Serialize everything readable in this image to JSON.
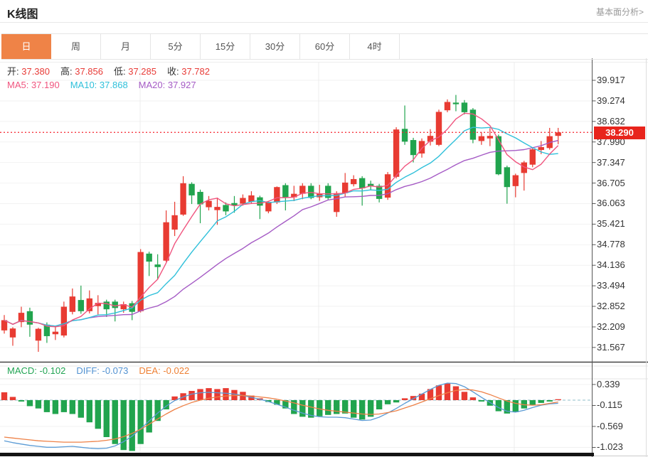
{
  "header": {
    "title": "K线图",
    "link": "基本面分析>"
  },
  "tabs": {
    "items": [
      "日",
      "周",
      "月",
      "5分",
      "15分",
      "30分",
      "60分",
      "4时"
    ],
    "selected_index": 0,
    "selected_color": "#ef8347"
  },
  "info": {
    "ohlc_value_color": "#e83c38",
    "ohlc": [
      {
        "label": "开:",
        "value": "37.380"
      },
      {
        "label": "高:",
        "value": "37.856"
      },
      {
        "label": "低:",
        "value": "37.285"
      },
      {
        "label": "收:",
        "value": "37.782"
      }
    ],
    "ma": [
      {
        "label": "MA5:",
        "value": "37.190",
        "color": "#f0557f"
      },
      {
        "label": "MA10:",
        "value": "37.868",
        "color": "#2fc0da"
      },
      {
        "label": "MA20:",
        "value": "37.927",
        "color": "#a55bc5"
      }
    ]
  },
  "price_tag": {
    "value": "38.290",
    "color": "#e8241c"
  },
  "y_axis": {
    "ticks": [
      "39.917",
      "39.274",
      "38.632",
      "37.990",
      "37.347",
      "36.705",
      "36.063",
      "35.421",
      "34.778",
      "34.136",
      "33.494",
      "32.852",
      "32.209",
      "31.567"
    ]
  },
  "macd_panel": {
    "legend": [
      {
        "label": "MACD:",
        "value": "-0.102",
        "color": "#21a453"
      },
      {
        "label": "DIFF:",
        "value": "-0.073",
        "color": "#5191d1"
      },
      {
        "label": "DEA:",
        "value": "-0.022",
        "color": "#ee8034"
      }
    ],
    "ticks": [
      "0.339",
      "-0.115",
      "-0.569",
      "-1.023"
    ]
  },
  "chart_data": {
    "type": "candlestick",
    "title": "K线图 daily candlestick with MA5/MA10/MA20 and MACD",
    "up_color": "#e83b32",
    "down_color": "#21a44e",
    "ma_colors": {
      "ma5": "#f0557f",
      "ma10": "#2fc0da",
      "ma20": "#a55bc5"
    },
    "macd_colors": {
      "diff": "#5b9bd5",
      "dea": "#ee8147"
    },
    "last_price": 38.29,
    "last_price_line_color": "#f5222d",
    "y_top_value": 39.917,
    "y_bottom_value": 31.567,
    "macd_range": [
      0.339,
      -1.023
    ],
    "candles": [
      [
        32.1,
        32.58,
        32.0,
        32.42
      ],
      [
        31.88,
        32.2,
        31.62,
        32.16
      ],
      [
        32.36,
        32.84,
        32.2,
        32.65
      ],
      [
        32.7,
        32.81,
        31.9,
        32.28
      ],
      [
        31.78,
        32.18,
        31.43,
        32.15
      ],
      [
        32.28,
        32.35,
        31.71,
        31.92
      ],
      [
        31.98,
        32.25,
        31.8,
        32.06
      ],
      [
        31.94,
        33.0,
        31.88,
        32.84
      ],
      [
        32.68,
        33.41,
        32.6,
        33.16
      ],
      [
        33.05,
        33.5,
        32.62,
        32.7
      ],
      [
        32.7,
        33.35,
        32.63,
        33.1
      ],
      [
        32.86,
        33.2,
        32.6,
        32.96
      ],
      [
        33.0,
        33.06,
        32.52,
        32.76
      ],
      [
        33.0,
        33.06,
        32.38,
        32.8
      ],
      [
        32.76,
        33.0,
        32.65,
        32.92
      ],
      [
        32.95,
        33.02,
        32.42,
        32.68
      ],
      [
        32.7,
        34.64,
        32.66,
        34.55
      ],
      [
        34.5,
        34.56,
        33.8,
        34.25
      ],
      [
        34.16,
        34.48,
        33.7,
        34.08
      ],
      [
        34.28,
        35.85,
        34.24,
        35.48
      ],
      [
        35.25,
        36.12,
        35.05,
        35.7
      ],
      [
        35.72,
        36.92,
        35.68,
        36.7
      ],
      [
        36.68,
        36.73,
        36.05,
        36.32
      ],
      [
        36.43,
        36.5,
        35.45,
        36.04
      ],
      [
        35.95,
        36.3,
        35.85,
        36.15
      ],
      [
        35.86,
        36.25,
        35.4,
        35.96
      ],
      [
        36.02,
        36.1,
        35.7,
        35.82
      ],
      [
        36.08,
        36.3,
        35.78,
        36.0
      ],
      [
        36.06,
        36.35,
        36.0,
        36.24
      ],
      [
        36.12,
        36.45,
        36.05,
        36.32
      ],
      [
        36.26,
        36.31,
        35.58,
        36.0
      ],
      [
        35.82,
        36.15,
        35.76,
        36.1
      ],
      [
        36.1,
        36.6,
        36.05,
        36.58
      ],
      [
        36.64,
        36.7,
        35.85,
        36.26
      ],
      [
        36.26,
        36.62,
        36.14,
        36.37
      ],
      [
        36.37,
        36.7,
        36.2,
        36.62
      ],
      [
        36.62,
        36.7,
        36.2,
        36.24
      ],
      [
        36.26,
        36.65,
        36.15,
        36.37
      ],
      [
        36.62,
        36.7,
        36.18,
        36.24
      ],
      [
        35.8,
        36.45,
        35.65,
        36.39
      ],
      [
        36.39,
        37.02,
        36.28,
        36.72
      ],
      [
        36.67,
        36.95,
        36.6,
        36.83
      ],
      [
        36.86,
        36.92,
        36.0,
        36.54
      ],
      [
        36.68,
        36.78,
        36.48,
        36.6
      ],
      [
        36.62,
        36.68,
        36.1,
        36.21
      ],
      [
        36.25,
        37.05,
        36.18,
        36.98
      ],
      [
        36.9,
        38.45,
        36.85,
        38.38
      ],
      [
        38.4,
        39.13,
        37.9,
        38.0
      ],
      [
        38.05,
        38.12,
        37.35,
        37.58
      ],
      [
        37.63,
        38.1,
        37.5,
        38.02
      ],
      [
        38.0,
        38.39,
        37.88,
        38.18
      ],
      [
        37.9,
        39.0,
        37.86,
        38.93
      ],
      [
        38.98,
        39.32,
        38.92,
        39.24
      ],
      [
        39.22,
        39.46,
        38.95,
        39.17
      ],
      [
        39.22,
        39.3,
        38.85,
        38.92
      ],
      [
        39.0,
        39.05,
        37.95,
        38.06
      ],
      [
        38.02,
        38.3,
        37.9,
        38.17
      ],
      [
        38.1,
        38.42,
        37.86,
        38.18
      ],
      [
        38.17,
        38.22,
        36.95,
        36.98
      ],
      [
        37.2,
        37.25,
        36.06,
        36.58
      ],
      [
        36.61,
        37.0,
        36.26,
        36.95
      ],
      [
        37.02,
        37.4,
        36.47,
        37.35
      ],
      [
        37.28,
        37.8,
        37.2,
        37.76
      ],
      [
        37.74,
        38.02,
        37.61,
        37.83
      ],
      [
        37.8,
        38.43,
        37.75,
        38.17
      ],
      [
        38.18,
        38.43,
        37.92,
        38.29
      ]
    ],
    "macd": {
      "diff": [
        -0.88,
        -0.92,
        -0.95,
        -0.98,
        -1.0,
        -1.02,
        -1.02,
        -1.01,
        -1.0,
        -1.02,
        -1.04,
        -1.05,
        -1.04,
        -0.99,
        -0.9,
        -0.78,
        -0.62,
        -0.45,
        -0.28,
        -0.13,
        -0.01,
        0.07,
        0.13,
        0.16,
        0.17,
        0.16,
        0.15,
        0.13,
        0.1,
        0.06,
        0.02,
        -0.03,
        -0.09,
        -0.15,
        -0.22,
        -0.28,
        -0.33,
        -0.36,
        -0.37,
        -0.37,
        -0.38,
        -0.41,
        -0.44,
        -0.43,
        -0.37,
        -0.28,
        -0.18,
        -0.07,
        0.03,
        0.13,
        0.23,
        0.32,
        0.37,
        0.36,
        0.29,
        0.18,
        0.06,
        -0.05,
        -0.16,
        -0.24,
        -0.26,
        -0.22,
        -0.16,
        -0.11,
        -0.08,
        -0.07
      ],
      "dea": [
        -0.8,
        -0.82,
        -0.84,
        -0.86,
        -0.88,
        -0.89,
        -0.9,
        -0.91,
        -0.91,
        -0.91,
        -0.9,
        -0.89,
        -0.87,
        -0.84,
        -0.79,
        -0.72,
        -0.63,
        -0.52,
        -0.41,
        -0.3,
        -0.2,
        -0.12,
        -0.05,
        0.0,
        0.04,
        0.07,
        0.09,
        0.1,
        0.1,
        0.09,
        0.07,
        0.05,
        0.02,
        -0.02,
        -0.06,
        -0.11,
        -0.15,
        -0.19,
        -0.22,
        -0.24,
        -0.26,
        -0.28,
        -0.3,
        -0.31,
        -0.3,
        -0.27,
        -0.23,
        -0.17,
        -0.11,
        -0.04,
        0.03,
        0.1,
        0.16,
        0.21,
        0.23,
        0.22,
        0.18,
        0.12,
        0.05,
        -0.02,
        -0.07,
        -0.1,
        -0.11,
        -0.1,
        -0.07,
        -0.04
      ],
      "hist": [
        0.17,
        0.07,
        -0.03,
        -0.13,
        -0.18,
        -0.26,
        -0.3,
        -0.26,
        -0.3,
        -0.38,
        -0.48,
        -0.62,
        -0.8,
        -0.95,
        -1.08,
        -1.1,
        -0.95,
        -0.7,
        -0.45,
        -0.2,
        0.08,
        0.15,
        0.2,
        0.24,
        0.26,
        0.24,
        0.26,
        0.22,
        0.18,
        0.1,
        0.04,
        -0.04,
        -0.1,
        -0.18,
        -0.3,
        -0.36,
        -0.38,
        -0.35,
        -0.32,
        -0.3,
        -0.29,
        -0.38,
        -0.42,
        -0.36,
        -0.2,
        -0.09,
        -0.05,
        0.04,
        0.09,
        0.14,
        0.24,
        0.32,
        0.36,
        0.3,
        0.18,
        0.06,
        -0.03,
        -0.12,
        -0.24,
        -0.29,
        -0.26,
        -0.18,
        -0.11,
        -0.06,
        -0.03,
        0.02
      ]
    }
  }
}
